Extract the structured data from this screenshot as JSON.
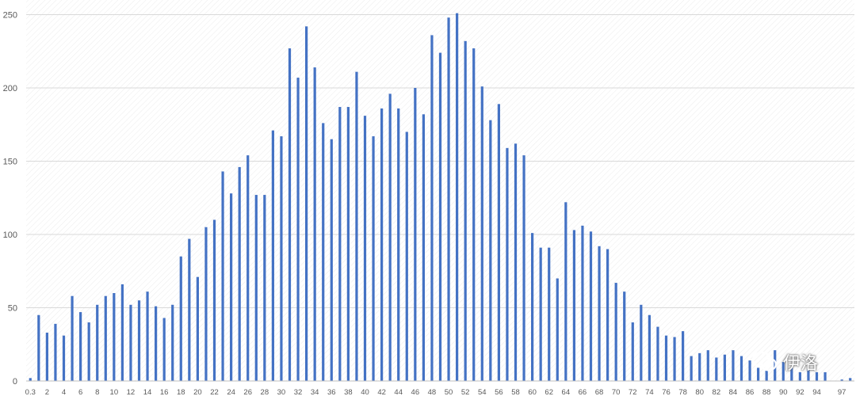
{
  "chart_data": {
    "type": "bar",
    "title": "",
    "xlabel": "",
    "ylabel": "",
    "ylim": [
      0,
      260
    ],
    "yticks": [
      0,
      50,
      100,
      150,
      200,
      250
    ],
    "grid": true,
    "legend": "none",
    "bar_color": "#4472c4",
    "categories": [
      "0.3",
      "1",
      "2",
      "3",
      "4",
      "5",
      "6",
      "7",
      "8",
      "9",
      "10",
      "11",
      "12",
      "13",
      "14",
      "15",
      "16",
      "17",
      "18",
      "19",
      "20",
      "21",
      "22",
      "23",
      "24",
      "25",
      "26",
      "27",
      "28",
      "29",
      "30",
      "31",
      "32",
      "33",
      "34",
      "35",
      "36",
      "37",
      "38",
      "39",
      "40",
      "41",
      "42",
      "43",
      "44",
      "45",
      "46",
      "47",
      "48",
      "49",
      "50",
      "51",
      "52",
      "53",
      "54",
      "55",
      "56",
      "57",
      "58",
      "59",
      "60",
      "61",
      "62",
      "63",
      "64",
      "65",
      "66",
      "67",
      "68",
      "69",
      "70",
      "71",
      "72",
      "73",
      "74",
      "75",
      "76",
      "77",
      "78",
      "79",
      "80",
      "81",
      "82",
      "83",
      "84",
      "85",
      "86",
      "87",
      "88",
      "89",
      "90",
      "91",
      "92",
      "93",
      "94",
      "95",
      "96",
      "97",
      "98"
    ],
    "x_tick_labels": [
      "0.3",
      "2",
      "4",
      "6",
      "8",
      "10",
      "12",
      "14",
      "16",
      "18",
      "20",
      "22",
      "24",
      "26",
      "28",
      "30",
      "32",
      "34",
      "36",
      "38",
      "40",
      "42",
      "44",
      "46",
      "48",
      "50",
      "52",
      "54",
      "56",
      "58",
      "60",
      "62",
      "64",
      "66",
      "68",
      "70",
      "72",
      "74",
      "76",
      "78",
      "80",
      "82",
      "84",
      "86",
      "88",
      "90",
      "92",
      "94",
      "97"
    ],
    "values": [
      2,
      45,
      33,
      39,
      31,
      58,
      47,
      40,
      52,
      58,
      60,
      66,
      52,
      55,
      61,
      51,
      43,
      52,
      85,
      97,
      71,
      105,
      110,
      143,
      128,
      146,
      154,
      127,
      127,
      171,
      167,
      227,
      207,
      242,
      214,
      176,
      165,
      187,
      187,
      211,
      181,
      167,
      186,
      196,
      186,
      170,
      200,
      182,
      236,
      224,
      248,
      251,
      232,
      227,
      201,
      178,
      189,
      159,
      162,
      154,
      101,
      91,
      91,
      70,
      122,
      103,
      106,
      102,
      92,
      90,
      67,
      61,
      40,
      52,
      45,
      37,
      31,
      30,
      34,
      17,
      19,
      21,
      16,
      18,
      21,
      17,
      14,
      9,
      7,
      21,
      13,
      9,
      6,
      8,
      6,
      6,
      0,
      1,
      2
    ]
  },
  "watermark": {
    "text": "伊洛",
    "icon": "chat-bubbles-icon"
  }
}
